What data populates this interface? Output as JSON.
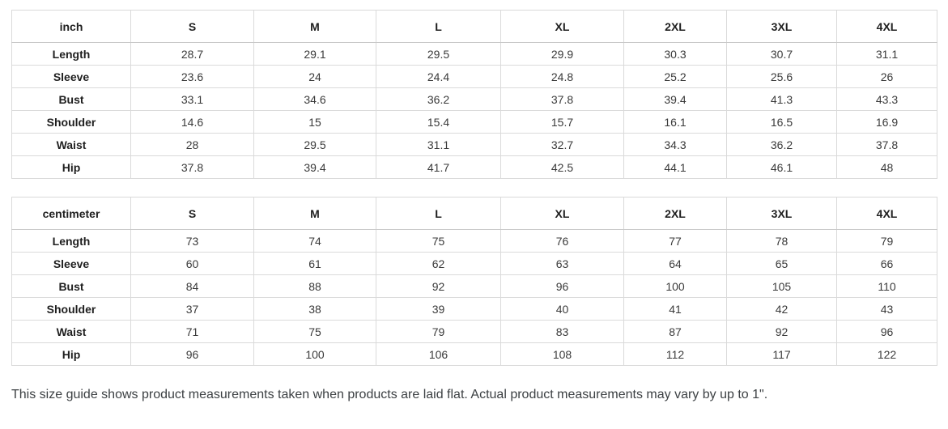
{
  "tables": [
    {
      "unit_label": "inch",
      "sizes": [
        "S",
        "M",
        "L",
        "XL",
        "2XL",
        "3XL",
        "4XL"
      ],
      "rows": [
        {
          "label": "Length",
          "values": [
            "28.7",
            "29.1",
            "29.5",
            "29.9",
            "30.3",
            "30.7",
            "31.1"
          ]
        },
        {
          "label": "Sleeve",
          "values": [
            "23.6",
            "24",
            "24.4",
            "24.8",
            "25.2",
            "25.6",
            "26"
          ]
        },
        {
          "label": "Bust",
          "values": [
            "33.1",
            "34.6",
            "36.2",
            "37.8",
            "39.4",
            "41.3",
            "43.3"
          ]
        },
        {
          "label": "Shoulder",
          "values": [
            "14.6",
            "15",
            "15.4",
            "15.7",
            "16.1",
            "16.5",
            "16.9"
          ]
        },
        {
          "label": "Waist",
          "values": [
            "28",
            "29.5",
            "31.1",
            "32.7",
            "34.3",
            "36.2",
            "37.8"
          ]
        },
        {
          "label": "Hip",
          "values": [
            "37.8",
            "39.4",
            "41.7",
            "42.5",
            "44.1",
            "46.1",
            "48"
          ]
        }
      ]
    },
    {
      "unit_label": "centimeter",
      "sizes": [
        "S",
        "M",
        "L",
        "XL",
        "2XL",
        "3XL",
        "4XL"
      ],
      "rows": [
        {
          "label": "Length",
          "values": [
            "73",
            "74",
            "75",
            "76",
            "77",
            "78",
            "79"
          ]
        },
        {
          "label": "Sleeve",
          "values": [
            "60",
            "61",
            "62",
            "63",
            "64",
            "65",
            "66"
          ]
        },
        {
          "label": "Bust",
          "values": [
            "84",
            "88",
            "92",
            "96",
            "100",
            "105",
            "110"
          ]
        },
        {
          "label": "Shoulder",
          "values": [
            "37",
            "38",
            "39",
            "40",
            "41",
            "42",
            "43"
          ]
        },
        {
          "label": "Waist",
          "values": [
            "71",
            "75",
            "79",
            "83",
            "87",
            "92",
            "96"
          ]
        },
        {
          "label": "Hip",
          "values": [
            "96",
            "100",
            "106",
            "108",
            "112",
            "117",
            "122"
          ]
        }
      ]
    }
  ],
  "note": "This size guide shows product measurements taken when products are laid flat. Actual product measurements may vary by up to 1\"."
}
